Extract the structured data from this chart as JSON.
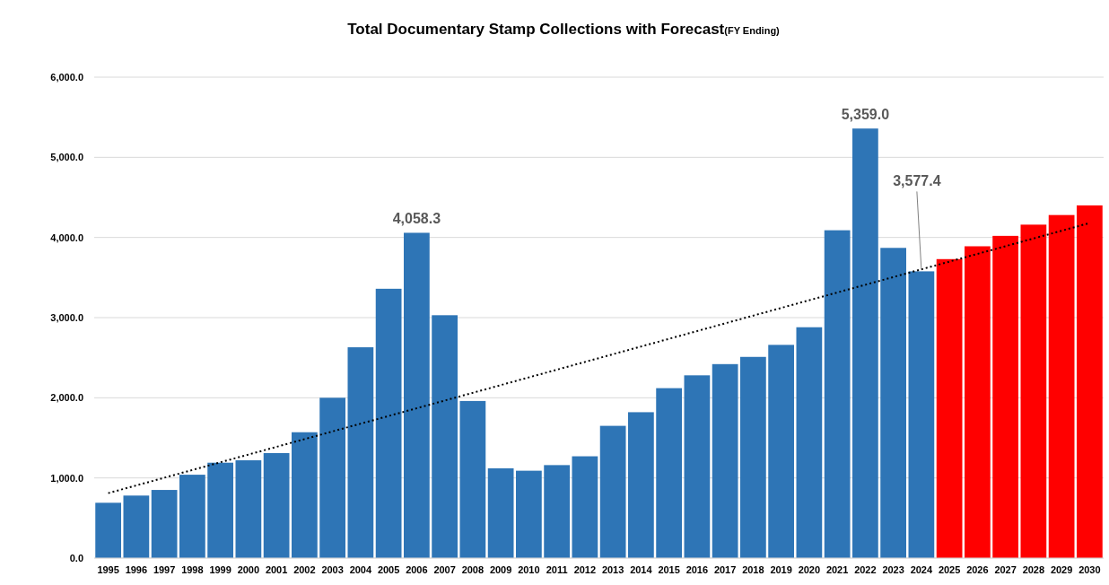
{
  "chart_data": {
    "type": "bar",
    "title": "Total Documentary Stamp Collections with Forecast",
    "subtitle": "(FY Ending)",
    "categories": [
      "1995",
      "1996",
      "1997",
      "1998",
      "1999",
      "2000",
      "2001",
      "2002",
      "2003",
      "2004",
      "2005",
      "2006",
      "2007",
      "2008",
      "2009",
      "2010",
      "2011",
      "2012",
      "2013",
      "2014",
      "2015",
      "2016",
      "2017",
      "2018",
      "2019",
      "2020",
      "2021",
      "2022",
      "2023",
      "2024",
      "2025",
      "2026",
      "2027",
      "2028",
      "2029",
      "2030"
    ],
    "series": [
      {
        "values": [
          690,
          780,
          850,
          1040,
          1190,
          1220,
          1310,
          1570,
          2000,
          2630,
          3360,
          4058.3,
          3030,
          1960,
          1120,
          1090,
          1160,
          1270,
          1650,
          1820,
          2120,
          2280,
          2420,
          2510,
          2660,
          2880,
          4090,
          5359.0,
          3870,
          3577.4,
          3730,
          3890,
          4020,
          4160,
          4280,
          4400
        ],
        "colors": [
          "#2e75b6",
          "#2e75b6",
          "#2e75b6",
          "#2e75b6",
          "#2e75b6",
          "#2e75b6",
          "#2e75b6",
          "#2e75b6",
          "#2e75b6",
          "#2e75b6",
          "#2e75b6",
          "#2e75b6",
          "#2e75b6",
          "#2e75b6",
          "#2e75b6",
          "#2e75b6",
          "#2e75b6",
          "#2e75b6",
          "#2e75b6",
          "#2e75b6",
          "#2e75b6",
          "#2e75b6",
          "#2e75b6",
          "#2e75b6",
          "#2e75b6",
          "#2e75b6",
          "#2e75b6",
          "#2e75b6",
          "#2e75b6",
          "#2e75b6",
          "#ff0000",
          "#ff0000",
          "#ff0000",
          "#ff0000",
          "#ff0000",
          "#ff0000"
        ],
        "value_labels": [
          null,
          null,
          null,
          null,
          null,
          null,
          null,
          null,
          null,
          null,
          null,
          "4,058.3",
          null,
          null,
          null,
          null,
          null,
          null,
          null,
          null,
          null,
          null,
          null,
          null,
          null,
          null,
          null,
          "5,359.0",
          null,
          "3,577.4",
          null,
          null,
          null,
          null,
          null,
          null
        ]
      },
      {
        "type": "line",
        "values": [
          810,
          null,
          null,
          null,
          null,
          null,
          null,
          null,
          null,
          null,
          null,
          null,
          null,
          null,
          null,
          null,
          null,
          null,
          null,
          null,
          null,
          null,
          null,
          null,
          null,
          null,
          null,
          null,
          null,
          null,
          null,
          null,
          null,
          null,
          null,
          4180
        ],
        "color": "#000000",
        "line_style": "dotted"
      }
    ],
    "ylim": [
      0,
      6000
    ],
    "yticks": [
      {
        "value": 0,
        "label": "0.0"
      },
      {
        "value": 1000,
        "label": "1,000.0"
      },
      {
        "value": 2000,
        "label": "2,000.0"
      },
      {
        "value": 3000,
        "label": "3,000.0"
      },
      {
        "value": 4000,
        "label": "4,000.0"
      },
      {
        "value": 5000,
        "label": "5,000.0"
      },
      {
        "value": 6000,
        "label": "6,000.0"
      }
    ],
    "grid": "y"
  }
}
